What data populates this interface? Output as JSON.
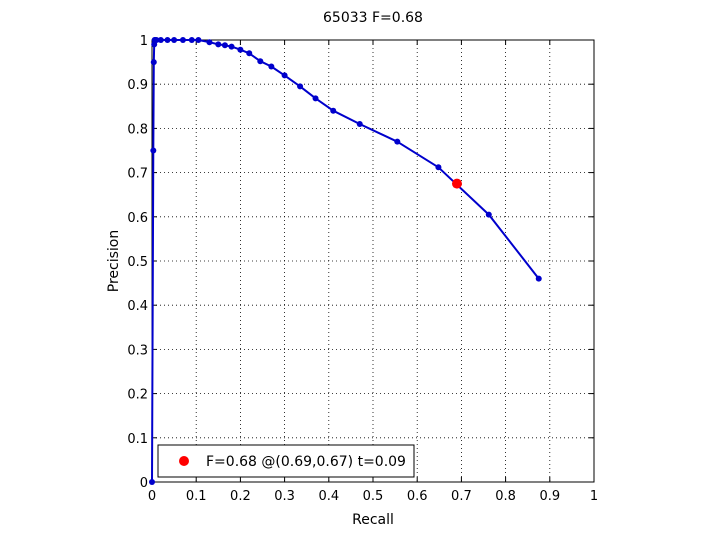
{
  "chart_data": {
    "type": "line",
    "title": "65033 F=0.68",
    "xlabel": "Recall",
    "ylabel": "Precision",
    "xlim": [
      0,
      1
    ],
    "ylim": [
      0,
      1
    ],
    "grid": true,
    "x_ticks": [
      "0",
      "0.1",
      "0.2",
      "0.3",
      "0.4",
      "0.5",
      "0.6",
      "0.7",
      "0.8",
      "0.9",
      "1"
    ],
    "y_ticks": [
      "0",
      "0.1",
      "0.2",
      "0.3",
      "0.4",
      "0.5",
      "0.6",
      "0.7",
      "0.8",
      "0.9",
      "1"
    ],
    "series": [
      {
        "type": "line",
        "color": "#0000cc",
        "x": [
          0.0,
          0.003,
          0.004,
          0.005,
          0.006,
          0.007,
          0.01,
          0.02,
          0.035,
          0.05,
          0.07,
          0.09,
          0.105,
          0.13,
          0.15,
          0.165,
          0.18,
          0.2,
          0.22,
          0.245,
          0.27,
          0.3,
          0.335,
          0.37,
          0.41,
          0.47,
          0.555,
          0.648,
          0.762,
          0.875
        ],
        "y": [
          0.0,
          0.75,
          0.95,
          0.99,
          1.0,
          1.0,
          1.0,
          1.0,
          1.0,
          1.0,
          1.0,
          1.0,
          1.0,
          0.995,
          0.99,
          0.988,
          0.985,
          0.978,
          0.97,
          0.952,
          0.94,
          0.92,
          0.895,
          0.868,
          0.84,
          0.81,
          0.77,
          0.712,
          0.605,
          0.46
        ]
      },
      {
        "type": "point",
        "color": "#ff0000",
        "x": [
          0.69
        ],
        "y": [
          0.675
        ]
      }
    ],
    "legend": {
      "placement": "bottom-left",
      "text": "F=0.68 @(0.69,0.67) t=0.09",
      "marker_color": "#ff0000"
    }
  }
}
